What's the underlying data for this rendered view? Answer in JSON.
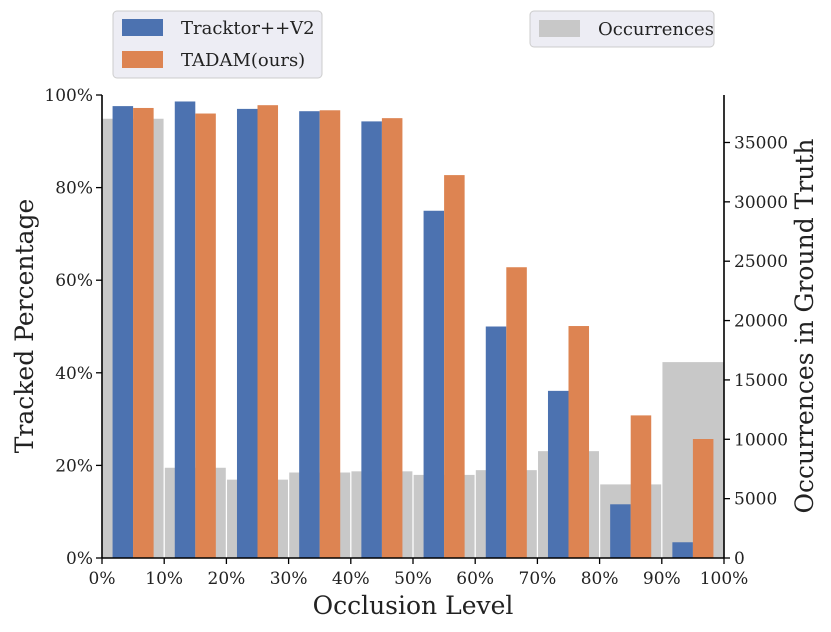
{
  "chart_data": {
    "type": "bar",
    "categories": [
      "0%-10%",
      "10%-20%",
      "20%-30%",
      "30%-40%",
      "40%-50%",
      "50%-60%",
      "60%-70%",
      "70%-80%",
      "80%-90%",
      "90%-100%"
    ],
    "series": [
      {
        "name": "Tracktor++V2",
        "color": "#4c72b0",
        "axis": "left",
        "values": [
          97.6,
          98.6,
          97.0,
          96.5,
          94.3,
          75.0,
          50.0,
          36.1,
          11.6,
          3.4
        ]
      },
      {
        "name": "TADAM(ours)",
        "color": "#dd8452",
        "axis": "left",
        "values": [
          97.2,
          96.0,
          97.8,
          96.7,
          95.0,
          82.7,
          62.8,
          50.1,
          30.8,
          25.7
        ]
      },
      {
        "name": "Occurrences",
        "color": "#c8c8c8",
        "axis": "right",
        "values": [
          37000,
          7600,
          6600,
          7200,
          7300,
          7000,
          7400,
          9000,
          6200,
          16500
        ]
      }
    ],
    "xlabel": "Occlusion Level",
    "ylabel": "Tracked Percentage",
    "y2label": "Occurrences in Ground Truth",
    "xlim": [
      0,
      100
    ],
    "ylim": [
      0,
      100
    ],
    "y2lim": [
      0,
      39000
    ],
    "xticks": [
      "0%",
      "10%",
      "20%",
      "30%",
      "40%",
      "50%",
      "60%",
      "70%",
      "80%",
      "90%",
      "100%"
    ],
    "yticks": [
      "0%",
      "20%",
      "40%",
      "60%",
      "80%",
      "100%"
    ],
    "y2ticks": [
      "0",
      "5000",
      "10000",
      "15000",
      "20000",
      "25000",
      "30000",
      "35000"
    ],
    "grid": false,
    "legend_left": [
      "Tracktor++V2",
      "TADAM(ours)"
    ],
    "legend_left_placement": "above-top-left",
    "legend_right": [
      "Occurrences"
    ],
    "legend_right_placement": "above-top-right"
  }
}
